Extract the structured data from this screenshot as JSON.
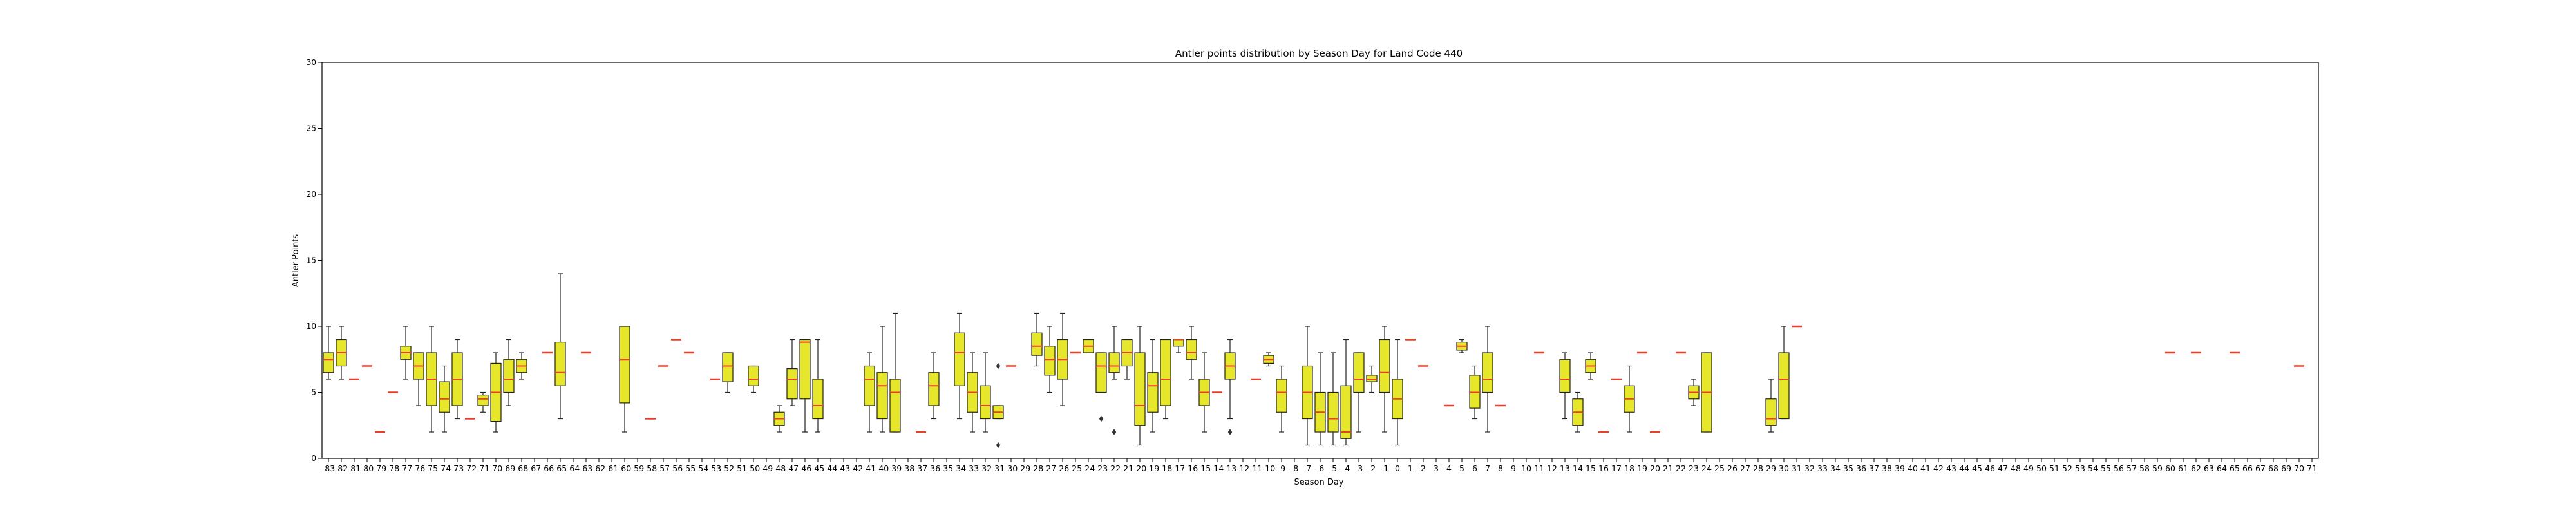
{
  "chart_data": {
    "type": "box",
    "title": "Antler points distribution by Season Day for Land Code 440",
    "xlabel": "Season Day",
    "ylabel": "Antler Points",
    "ylim": [
      0,
      30
    ],
    "yticks": [
      0,
      5,
      10,
      15,
      20,
      25,
      30
    ],
    "grid": false,
    "legend": "none",
    "colors": {
      "box_fill": "#e6e62a",
      "box_edge": "#222222",
      "median": "#e8402a",
      "axis": "#000000"
    },
    "categories": [
      -83,
      -82,
      -81,
      -80,
      -79,
      -78,
      -77,
      -76,
      -75,
      -74,
      -73,
      -72,
      -71,
      -70,
      -69,
      -68,
      -67,
      -66,
      -65,
      -64,
      -63,
      -62,
      -61,
      -60,
      -59,
      -58,
      -57,
      -56,
      -55,
      -54,
      -53,
      -52,
      -51,
      -50,
      -49,
      -48,
      -47,
      -46,
      -45,
      -44,
      -43,
      -42,
      -41,
      -40,
      -39,
      -38,
      -37,
      -36,
      -35,
      -34,
      -33,
      -32,
      -31,
      -30,
      -29,
      -28,
      -27,
      -26,
      -25,
      -24,
      -23,
      -22,
      -21,
      -20,
      -19,
      -18,
      -17,
      -16,
      -15,
      -14,
      -13,
      -12,
      -11,
      -10,
      -9,
      -8,
      -7,
      -6,
      -5,
      -4,
      -3,
      -2,
      -1,
      0,
      1,
      2,
      3,
      4,
      5,
      6,
      7,
      8,
      9,
      10,
      11,
      12,
      13,
      14,
      15,
      16,
      17,
      18,
      19,
      20,
      21,
      22,
      23,
      24,
      25,
      26,
      27,
      28,
      29,
      30,
      31,
      32,
      33,
      34,
      35,
      36,
      37,
      38,
      39,
      40,
      41,
      42,
      43,
      44,
      45,
      46,
      47,
      48,
      49,
      50,
      51,
      52,
      53,
      54,
      55,
      56,
      57,
      58,
      59,
      60,
      61,
      62,
      63,
      64,
      65,
      66,
      67,
      68,
      69,
      70,
      71
    ],
    "boxes": [
      {
        "day": -83,
        "min": 6,
        "q1": 6.5,
        "median": 7.5,
        "q3": 8,
        "max": 10,
        "fliers": []
      },
      {
        "day": -82,
        "min": 6,
        "q1": 7,
        "median": 8,
        "q3": 9,
        "max": 10,
        "fliers": []
      },
      {
        "day": -81,
        "median": 6
      },
      {
        "day": -80,
        "median": 7
      },
      {
        "day": -79,
        "median": 2
      },
      {
        "day": -78,
        "median": 5
      },
      {
        "day": -77,
        "min": 6,
        "q1": 7.5,
        "median": 8,
        "q3": 8.5,
        "max": 10,
        "fliers": []
      },
      {
        "day": -76,
        "min": 4,
        "q1": 6,
        "median": 7,
        "q3": 8,
        "max": 8,
        "fliers": []
      },
      {
        "day": -75,
        "min": 2,
        "q1": 4,
        "median": 6,
        "q3": 8,
        "max": 10,
        "fliers": []
      },
      {
        "day": -74,
        "min": 2,
        "q1": 3.5,
        "median": 4.5,
        "q3": 5.8,
        "max": 7,
        "fliers": []
      },
      {
        "day": -73,
        "min": 3,
        "q1": 4,
        "median": 6,
        "q3": 8,
        "max": 9,
        "fliers": []
      },
      {
        "day": -72,
        "median": 3
      },
      {
        "day": -71,
        "min": 3.5,
        "q1": 4,
        "median": 4.5,
        "q3": 4.8,
        "max": 5,
        "fliers": []
      },
      {
        "day": -70,
        "min": 2,
        "q1": 2.8,
        "median": 5,
        "q3": 7.2,
        "max": 8,
        "fliers": []
      },
      {
        "day": -69,
        "min": 4,
        "q1": 5,
        "median": 6,
        "q3": 7.5,
        "max": 9,
        "fliers": []
      },
      {
        "day": -68,
        "min": 6,
        "q1": 6.5,
        "median": 7,
        "q3": 7.5,
        "max": 8,
        "fliers": []
      },
      {
        "day": -66,
        "median": 8
      },
      {
        "day": -65,
        "min": 3,
        "q1": 5.5,
        "median": 6.5,
        "q3": 8.8,
        "max": 14,
        "fliers": []
      },
      {
        "day": -63,
        "median": 8
      },
      {
        "day": -60,
        "min": 2,
        "q1": 4.2,
        "median": 7.5,
        "q3": 10,
        "max": 10,
        "fliers": []
      },
      {
        "day": -58,
        "median": 3
      },
      {
        "day": -57,
        "median": 7
      },
      {
        "day": -56,
        "median": 9
      },
      {
        "day": -55,
        "median": 8
      },
      {
        "day": -53,
        "median": 6
      },
      {
        "day": -52,
        "min": 5,
        "q1": 5.8,
        "median": 7,
        "q3": 8,
        "max": 8,
        "fliers": []
      },
      {
        "day": -50,
        "min": 5,
        "q1": 5.5,
        "median": 6,
        "q3": 7,
        "max": 7,
        "fliers": []
      },
      {
        "day": -48,
        "min": 2,
        "q1": 2.5,
        "median": 3,
        "q3": 3.5,
        "max": 4,
        "fliers": []
      },
      {
        "day": -47,
        "min": 4,
        "q1": 4.5,
        "median": 6,
        "q3": 6.8,
        "max": 9,
        "fliers": []
      },
      {
        "day": -46,
        "min": 2,
        "q1": 4.5,
        "median": 8.8,
        "q3": 9,
        "max": 9,
        "fliers": []
      },
      {
        "day": -45,
        "min": 2,
        "q1": 3,
        "median": 4,
        "q3": 6,
        "max": 9,
        "fliers": []
      },
      {
        "day": -41,
        "min": 2,
        "q1": 4,
        "median": 6,
        "q3": 7,
        "max": 8,
        "fliers": []
      },
      {
        "day": -40,
        "min": 2,
        "q1": 3,
        "median": 5.5,
        "q3": 6.5,
        "max": 10,
        "fliers": []
      },
      {
        "day": -39,
        "min": 2,
        "q1": 2,
        "median": 5,
        "q3": 6,
        "max": 11,
        "fliers": []
      },
      {
        "day": -37,
        "median": 2
      },
      {
        "day": -36,
        "min": 3,
        "q1": 4,
        "median": 5.5,
        "q3": 6.5,
        "max": 8,
        "fliers": []
      },
      {
        "day": -34,
        "min": 3,
        "q1": 5.5,
        "median": 8,
        "q3": 9.5,
        "max": 11,
        "fliers": []
      },
      {
        "day": -33,
        "min": 2,
        "q1": 3.5,
        "median": 5,
        "q3": 6.5,
        "max": 8,
        "fliers": []
      },
      {
        "day": -32,
        "min": 2,
        "q1": 3,
        "median": 4,
        "q3": 5.5,
        "max": 8,
        "fliers": []
      },
      {
        "day": -31,
        "min": 3,
        "q1": 3,
        "median": 3.5,
        "q3": 4,
        "max": 4,
        "fliers": [
          1,
          7
        ]
      },
      {
        "day": -30,
        "median": 7
      },
      {
        "day": -28,
        "min": 7,
        "q1": 7.8,
        "median": 8.5,
        "q3": 9.5,
        "max": 11,
        "fliers": []
      },
      {
        "day": -27,
        "min": 5,
        "q1": 6.3,
        "median": 7.5,
        "q3": 8.5,
        "max": 10,
        "fliers": []
      },
      {
        "day": -26,
        "min": 4,
        "q1": 6,
        "median": 7.5,
        "q3": 9,
        "max": 11,
        "fliers": []
      },
      {
        "day": -25,
        "median": 8
      },
      {
        "day": -24,
        "min": 8,
        "q1": 8,
        "median": 8.5,
        "q3": 9,
        "max": 9,
        "fliers": []
      },
      {
        "day": -23,
        "min": 5,
        "q1": 5,
        "median": 7,
        "q3": 8,
        "max": 8,
        "fliers": [
          3
        ]
      },
      {
        "day": -22,
        "min": 6,
        "q1": 6.5,
        "median": 7,
        "q3": 8,
        "max": 10,
        "fliers": [
          2
        ]
      },
      {
        "day": -21,
        "min": 6,
        "q1": 7,
        "median": 8,
        "q3": 9,
        "max": 9,
        "fliers": []
      },
      {
        "day": -20,
        "min": 1,
        "q1": 2.5,
        "median": 4,
        "q3": 8,
        "max": 10,
        "fliers": []
      },
      {
        "day": -19,
        "min": 2,
        "q1": 3.5,
        "median": 5.5,
        "q3": 6.5,
        "max": 9,
        "fliers": []
      },
      {
        "day": -18,
        "min": 3,
        "q1": 4,
        "median": 6,
        "q3": 9,
        "max": 9,
        "fliers": []
      },
      {
        "day": -17,
        "min": 8,
        "q1": 8.5,
        "median": 9,
        "q3": 9,
        "max": 9,
        "fliers": []
      },
      {
        "day": -16,
        "min": 6,
        "q1": 7.5,
        "median": 8,
        "q3": 9,
        "max": 10,
        "fliers": []
      },
      {
        "day": -15,
        "min": 2,
        "q1": 4,
        "median": 5,
        "q3": 6,
        "max": 8,
        "fliers": []
      },
      {
        "day": -14,
        "median": 5
      },
      {
        "day": -13,
        "min": 3,
        "q1": 6,
        "median": 7,
        "q3": 8,
        "max": 9,
        "fliers": [
          2
        ]
      },
      {
        "day": -11,
        "median": 6
      },
      {
        "day": -10,
        "min": 7,
        "q1": 7.2,
        "median": 7.5,
        "q3": 7.8,
        "max": 8,
        "fliers": []
      },
      {
        "day": -9,
        "min": 2,
        "q1": 3.5,
        "median": 5,
        "q3": 6,
        "max": 7,
        "fliers": []
      },
      {
        "day": -7,
        "min": 1,
        "q1": 3,
        "median": 5,
        "q3": 7,
        "max": 10,
        "fliers": []
      },
      {
        "day": -6,
        "min": 1,
        "q1": 2,
        "median": 3.5,
        "q3": 5,
        "max": 8,
        "fliers": []
      },
      {
        "day": -5,
        "min": 1,
        "q1": 2,
        "median": 3,
        "q3": 5,
        "max": 8,
        "fliers": []
      },
      {
        "day": -4,
        "min": 1,
        "q1": 1.5,
        "median": 2,
        "q3": 5.5,
        "max": 9,
        "fliers": []
      },
      {
        "day": -3,
        "min": 2,
        "q1": 5,
        "median": 6,
        "q3": 8,
        "max": 8,
        "fliers": []
      },
      {
        "day": -2,
        "min": 5,
        "q1": 5.8,
        "median": 6,
        "q3": 6.3,
        "max": 7,
        "fliers": []
      },
      {
        "day": -1,
        "min": 2,
        "q1": 5,
        "median": 6.5,
        "q3": 9,
        "max": 10,
        "fliers": []
      },
      {
        "day": 0,
        "min": 1,
        "q1": 3,
        "median": 4.5,
        "q3": 6,
        "max": 9,
        "fliers": []
      },
      {
        "day": 1,
        "median": 9
      },
      {
        "day": 2,
        "median": 7
      },
      {
        "day": 4,
        "median": 4
      },
      {
        "day": 5,
        "min": 8,
        "q1": 8.2,
        "median": 8.5,
        "q3": 8.8,
        "max": 9,
        "fliers": []
      },
      {
        "day": 6,
        "min": 3,
        "q1": 3.8,
        "median": 5,
        "q3": 6.3,
        "max": 7,
        "fliers": []
      },
      {
        "day": 7,
        "min": 2,
        "q1": 5,
        "median": 6,
        "q3": 8,
        "max": 10,
        "fliers": []
      },
      {
        "day": 8,
        "median": 4
      },
      {
        "day": 11,
        "median": 8
      },
      {
        "day": 13,
        "min": 3,
        "q1": 5,
        "median": 6,
        "q3": 7.5,
        "max": 8,
        "fliers": []
      },
      {
        "day": 14,
        "min": 2,
        "q1": 2.5,
        "median": 3.5,
        "q3": 4.5,
        "max": 5,
        "fliers": []
      },
      {
        "day": 15,
        "min": 6,
        "q1": 6.5,
        "median": 7,
        "q3": 7.5,
        "max": 8,
        "fliers": []
      },
      {
        "day": 16,
        "median": 2
      },
      {
        "day": 17,
        "median": 6
      },
      {
        "day": 18,
        "min": 2,
        "q1": 3.5,
        "median": 4.5,
        "q3": 5.5,
        "max": 7,
        "fliers": []
      },
      {
        "day": 19,
        "median": 8
      },
      {
        "day": 20,
        "median": 2
      },
      {
        "day": 22,
        "median": 8
      },
      {
        "day": 23,
        "min": 4,
        "q1": 4.5,
        "median": 5,
        "q3": 5.5,
        "max": 6,
        "fliers": []
      },
      {
        "day": 24,
        "min": 2,
        "q1": 2,
        "median": 5,
        "q3": 8,
        "max": 8,
        "fliers": []
      },
      {
        "day": 29,
        "min": 2,
        "q1": 2.5,
        "median": 3,
        "q3": 4.5,
        "max": 6,
        "fliers": []
      },
      {
        "day": 30,
        "min": 3,
        "q1": 3,
        "median": 6,
        "q3": 8,
        "max": 10,
        "fliers": []
      },
      {
        "day": 31,
        "median": 10
      },
      {
        "day": 60,
        "median": 8
      },
      {
        "day": 62,
        "median": 8
      },
      {
        "day": 65,
        "median": 8
      },
      {
        "day": 70,
        "median": 7
      }
    ]
  }
}
